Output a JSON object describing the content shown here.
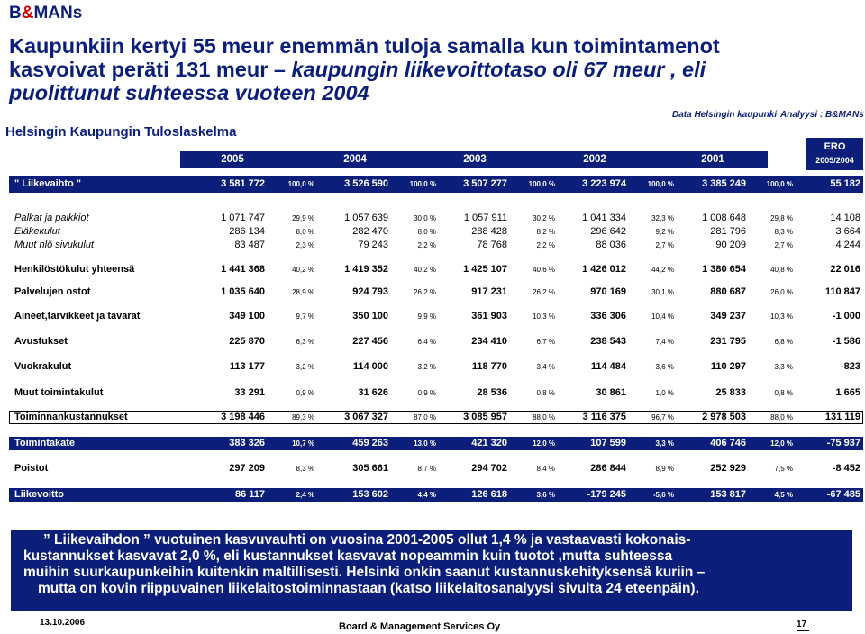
{
  "logo": {
    "b": "B",
    "amp": "&",
    "mans": "MANs"
  },
  "title": {
    "line1": "Kaupunkiin kertyi 55 meur enemmän tuloja samalla kun toimintamenot",
    "line2a": "kasvoivat peräti 131 meur – ",
    "line2b": "kaupungin liikevoittotaso oli 67 meur , eli",
    "line3": "puolittunut suhteessa vuoteen 2004"
  },
  "source": {
    "data": "Data Helsingin  kaupunki",
    "analysis": "Analyysi : B&MANs"
  },
  "subtitle": "Helsingin Kaupungin Tuloslaskelma",
  "years": [
    "2005",
    "2004",
    "2003",
    "2002",
    "2001"
  ],
  "ero": {
    "label": "ERO",
    "period": "2005/2004"
  },
  "revenue": {
    "label": "\" Liikevaihto \"",
    "values": [
      "3 581 772",
      "3 526 590",
      "3 507 277",
      "3 223 974",
      "3 385 249"
    ],
    "pcts": [
      "100,0 %",
      "100,0 %",
      "100,0 %",
      "100,0 %",
      "100,0 %"
    ],
    "ero": "55 182"
  },
  "rows": [
    {
      "label": "Palkat ja palkkiot",
      "style": "it",
      "values": [
        "1 071 747",
        "1 057 639",
        "1 057 911",
        "1 041 334",
        "1 008 648"
      ],
      "pcts": [
        "29,9 %",
        "30,0 %",
        "30,2 %",
        "32,3 %",
        "29,8 %"
      ],
      "ero": "14 108"
    },
    {
      "label": "Eläkekulut",
      "style": "it",
      "values": [
        "286 134",
        "282 470",
        "288 428",
        "296 642",
        "281 796"
      ],
      "pcts": [
        "8,0 %",
        "8,0 %",
        "8,2 %",
        "9,2 %",
        "8,3 %"
      ],
      "ero": "3 664"
    },
    {
      "label": "Muut hlö sivukulut",
      "style": "it",
      "values": [
        "83 487",
        "79 243",
        "78 768",
        "88 036",
        "90 209"
      ],
      "pcts": [
        "2,3 %",
        "2,2 %",
        "2,2 %",
        "2,7 %",
        "2,7 %"
      ],
      "ero": "4 244"
    },
    {
      "label": "Henkilöstökulut yhteensä",
      "style": "bd",
      "values": [
        "1 441 368",
        "1 419 352",
        "1 425 107",
        "1 426 012",
        "1 380 654"
      ],
      "pcts": [
        "40,2 %",
        "40,2 %",
        "40,6 %",
        "44,2 %",
        "40,8 %"
      ],
      "ero": "22 016"
    },
    {
      "label": "Palvelujen ostot",
      "style": "bd",
      "values": [
        "1 035 640",
        "924 793",
        "917 231",
        "970 169",
        "880 687"
      ],
      "pcts": [
        "28,9 %",
        "26,2 %",
        "26,2 %",
        "30,1 %",
        "26,0 %"
      ],
      "ero": "110 847"
    },
    {
      "label": "Aineet,tarvikkeet ja tavarat",
      "style": "bd",
      "values": [
        "349 100",
        "350 100",
        "361 903",
        "336 306",
        "349 237"
      ],
      "pcts": [
        "9,7 %",
        "9,9 %",
        "10,3 %",
        "10,4 %",
        "10,3 %"
      ],
      "ero": "-1 000"
    },
    {
      "label": "Avustukset",
      "style": "bd",
      "values": [
        "225 870",
        "227 456",
        "234 410",
        "238 543",
        "231 795"
      ],
      "pcts": [
        "6,3 %",
        "6,4 %",
        "6,7 %",
        "7,4 %",
        "6,8 %"
      ],
      "ero": "-1 586"
    },
    {
      "label": "Vuokrakulut",
      "style": "bd",
      "values": [
        "113 177",
        "114 000",
        "118 770",
        "114 484",
        "110 297"
      ],
      "pcts": [
        "3,2 %",
        "3,2 %",
        "3,4 %",
        "3,6 %",
        "3,3 %"
      ],
      "ero": "-823"
    },
    {
      "label": "Muut toimintakulut",
      "style": "bd",
      "values": [
        "33 291",
        "31 626",
        "28 536",
        "30 861",
        "25 833"
      ],
      "pcts": [
        "0,9 %",
        "0,9 %",
        "0,8 %",
        "1,0 %",
        "0,8 %"
      ],
      "ero": "1 665"
    },
    {
      "label": "Toiminnankustannukset",
      "style": "bd",
      "values": [
        "3 198 446",
        "3 067 327",
        "3 085 957",
        "3 116 375",
        "2 978 503"
      ],
      "pcts": [
        "89,3 %",
        "87,0 %",
        "88,0 %",
        "96,7 %",
        "88,0 %"
      ],
      "ero": "131 119"
    },
    {
      "label": "Toimintakate",
      "style": "bd",
      "values": [
        "383 326",
        "459 263",
        "421 320",
        "107 599",
        "406 746"
      ],
      "pcts": [
        "10,7 %",
        "13,0 %",
        "12,0 %",
        "3,3 %",
        "12,0 %"
      ],
      "ero": "-75 937"
    },
    {
      "label": "Poistot",
      "style": "bd",
      "values": [
        "297 209",
        "305 661",
        "294 702",
        "286 844",
        "252 929"
      ],
      "pcts": [
        "8,3 %",
        "8,7 %",
        "8,4 %",
        "8,9 %",
        "7,5 %"
      ],
      "ero": "-8 452"
    },
    {
      "label": "Liikevoitto",
      "style": "bd",
      "values": [
        "86 117",
        "153 602",
        "126 618",
        "-179 245",
        "153 817"
      ],
      "pcts": [
        "2,4 %",
        "4,4 %",
        "3,6 %",
        "-5,6 %",
        "4,5 %"
      ],
      "ero": "-67 485"
    }
  ],
  "note": {
    "line1a": "” Liikevaihdon ”",
    "line1b": " vuotuinen kasvuvauhti on vuosina 2001-2005 ollut 1,4 % ja vastaavasti kokonais-",
    "line2": "kustannukset kasvavat 2,0 %, eli kustannukset kasvavat nopeammin kuin tuotot ,mutta suhteessa",
    "line3": "muihin suurkaupunkeihin kuitenkin maltillisesti. Helsinki onkin saanut kustannuskehityksensä kuriin –",
    "line4": "mutta on kovin riippuvainen liikelaitostoiminnastaan (katso liikelaitosanalyysi sivulta 24 eteenpäin)."
  },
  "footer": {
    "date": "13.10.2006",
    "company": "Board & Management Services Oy",
    "page": "17"
  }
}
